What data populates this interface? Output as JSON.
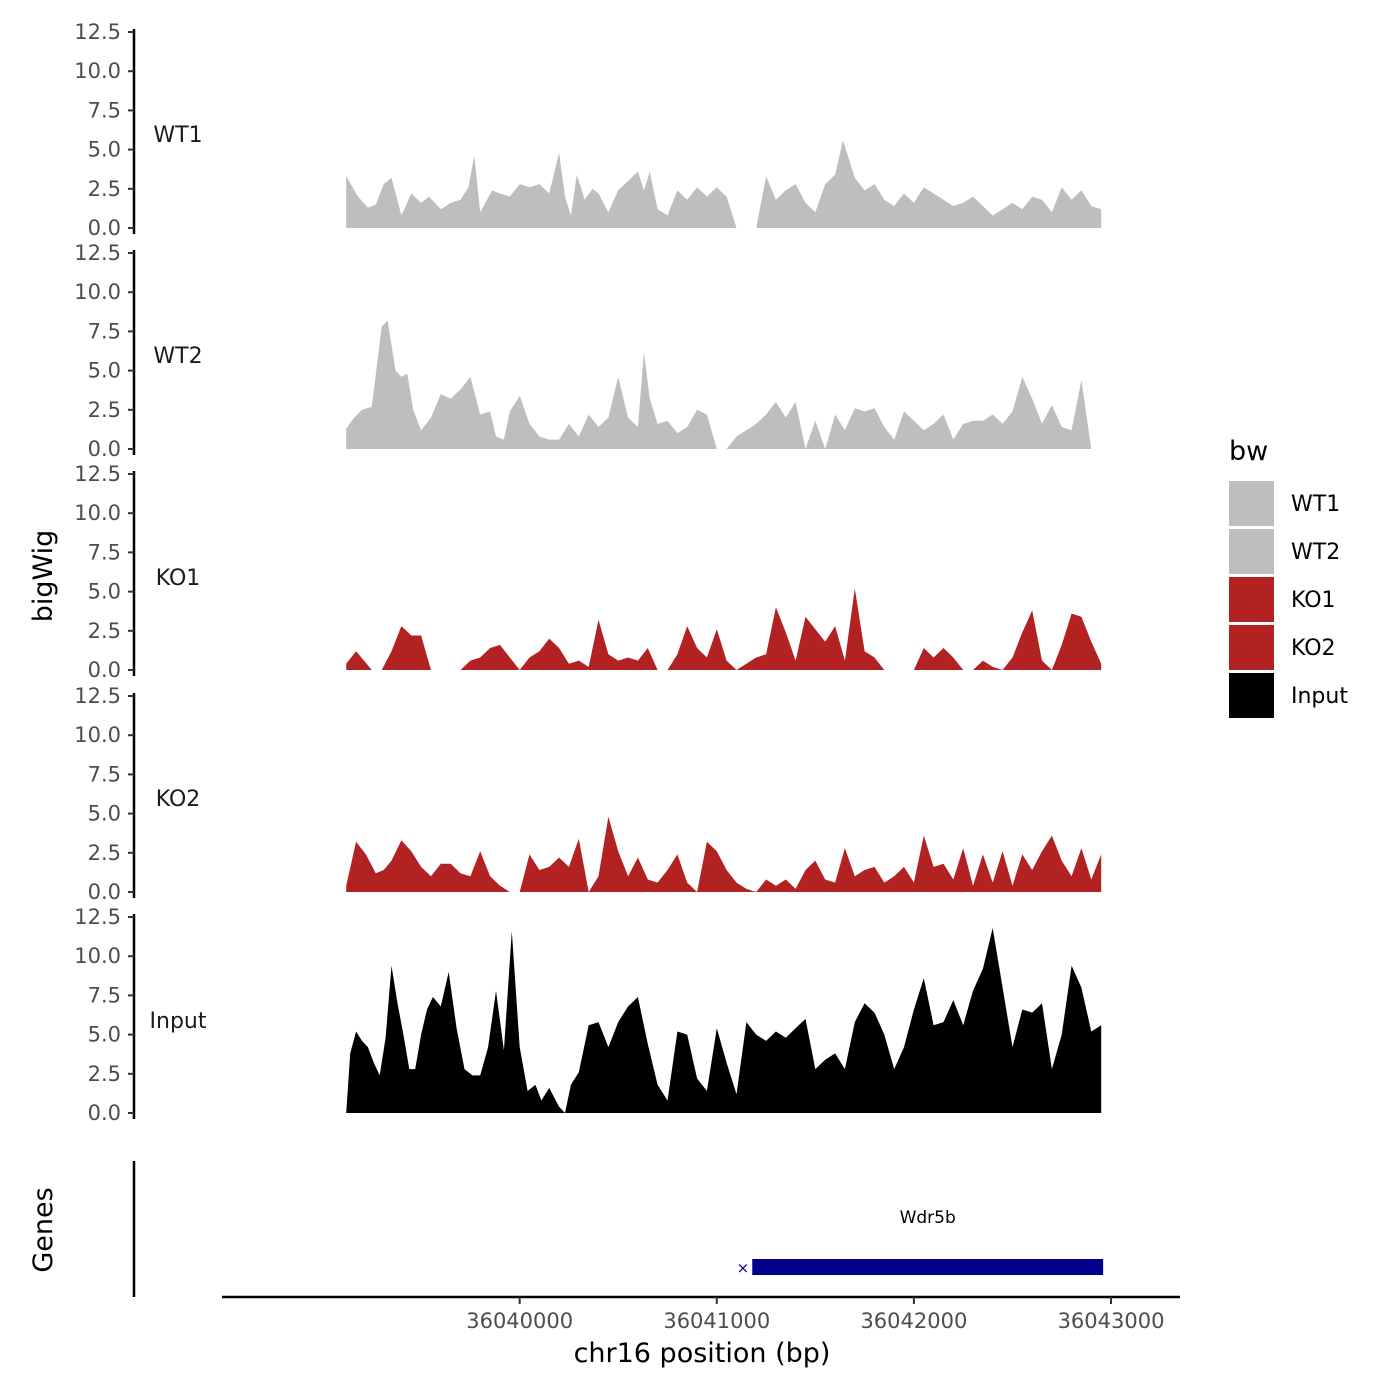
{
  "chart_data": {
    "type": "area",
    "xlabel": "chr16 position (bp)",
    "ylabel": "bigWig",
    "genes_ylabel": "Genes",
    "xlim": [
      36038500,
      36043350
    ],
    "x_ticks": [
      {
        "value": 36040000,
        "label": "36040000"
      },
      {
        "value": 36041000,
        "label": "36041000"
      },
      {
        "value": 36042000,
        "label": "36042000"
      },
      {
        "value": 36043000,
        "label": "36043000"
      }
    ],
    "ylim": [
      0,
      12.5
    ],
    "y_ticks": [
      {
        "value": 0,
        "label": "0.0"
      },
      {
        "value": 2.5,
        "label": "2.5"
      },
      {
        "value": 5,
        "label": "5.0"
      },
      {
        "value": 7.5,
        "label": "7.5"
      },
      {
        "value": 10,
        "label": "10.0"
      },
      {
        "value": 12.5,
        "label": "12.5"
      }
    ],
    "legend": {
      "title": "bw",
      "position": "right",
      "entries": [
        {
          "label": "WT1",
          "color": "#bebebe"
        },
        {
          "label": "WT2",
          "color": "#bebebe"
        },
        {
          "label": "KO1",
          "color": "#b22222"
        },
        {
          "label": "KO2",
          "color": "#b22222"
        },
        {
          "label": "Input",
          "color": "#000000"
        }
      ]
    },
    "series": [
      {
        "name": "WT1",
        "color": "#bebebe",
        "x": [
          36039120,
          36039180,
          36039230,
          36039270,
          36039310,
          36039350,
          36039400,
          36039450,
          36039500,
          36039540,
          36039600,
          36039650,
          36039700,
          36039740,
          36039770,
          36039800,
          36039860,
          36039900,
          36039950,
          36040000,
          36040050,
          36040100,
          36040150,
          36040200,
          36040230,
          36040260,
          36040290,
          36040330,
          36040370,
          36040400,
          36040450,
          36040500,
          36040550,
          36040600,
          36040630,
          36040660,
          36040700,
          36040750,
          36040800,
          36040850,
          36040900,
          36040950,
          36041000,
          36041050,
          36041100,
          36041200,
          36041250,
          36041300,
          36041350,
          36041400,
          36041450,
          36041500,
          36041550,
          36041600,
          36041640,
          36041700,
          36041750,
          36041800,
          36041850,
          36041900,
          36041950,
          36042000,
          36042050,
          36042100,
          36042150,
          36042200,
          36042250,
          36042300,
          36042350,
          36042400,
          36042450,
          36042500,
          36042550,
          36042600,
          36042650,
          36042700,
          36042750,
          36042800,
          36042850,
          36042900,
          36042950
        ],
        "y": [
          3.3,
          2.0,
          1.3,
          1.5,
          2.8,
          3.2,
          0.8,
          2.2,
          1.6,
          2.0,
          1.2,
          1.6,
          1.8,
          2.6,
          4.6,
          1.0,
          2.4,
          2.2,
          2.0,
          2.8,
          2.6,
          2.8,
          2.2,
          4.8,
          2.0,
          0.8,
          3.4,
          1.8,
          2.5,
          2.2,
          1.0,
          2.4,
          3.0,
          3.6,
          2.4,
          3.6,
          1.2,
          0.8,
          2.4,
          1.8,
          2.6,
          2.0,
          2.6,
          2.0,
          0,
          0,
          3.3,
          1.8,
          2.4,
          2.8,
          1.6,
          1.0,
          2.8,
          3.4,
          5.6,
          3.2,
          2.4,
          2.8,
          1.8,
          1.4,
          2.2,
          1.6,
          2.6,
          2.2,
          1.8,
          1.4,
          1.6,
          2.0,
          1.4,
          0.8,
          1.2,
          1.6,
          1.2,
          2.0,
          1.8,
          1.0,
          2.6,
          1.8,
          2.4,
          1.4,
          1.2
        ]
      },
      {
        "name": "WT2",
        "color": "#bebebe",
        "x": [
          36039120,
          36039160,
          36039200,
          36039250,
          36039300,
          36039330,
          36039370,
          36039400,
          36039430,
          36039460,
          36039500,
          36039550,
          36039600,
          36039650,
          36039700,
          36039750,
          36039800,
          36039850,
          36039880,
          36039920,
          36039950,
          36040000,
          36040050,
          36040100,
          36040150,
          36040200,
          36040250,
          36040300,
          36040350,
          36040400,
          36040450,
          36040500,
          36040550,
          36040600,
          36040630,
          36040660,
          36040700,
          36040750,
          36040800,
          36040850,
          36040900,
          36040950,
          36041000,
          36041050,
          36041100,
          36041200,
          36041250,
          36041300,
          36041350,
          36041400,
          36041450,
          36041500,
          36041550,
          36041600,
          36041650,
          36041700,
          36041750,
          36041800,
          36041850,
          36041900,
          36041950,
          36042000,
          36042050,
          36042100,
          36042150,
          36042200,
          36042250,
          36042300,
          36042350,
          36042400,
          36042450,
          36042500,
          36042550,
          36042600,
          36042650,
          36042700,
          36042750,
          36042800,
          36042850,
          36042900,
          36042950
        ],
        "y": [
          1.3,
          2.0,
          2.5,
          2.7,
          7.8,
          8.2,
          5.0,
          4.6,
          4.8,
          2.5,
          1.2,
          2.0,
          3.5,
          3.2,
          3.8,
          4.6,
          2.2,
          2.4,
          0.8,
          0.6,
          2.4,
          3.4,
          1.6,
          0.8,
          0.6,
          0.6,
          1.6,
          0.8,
          2.2,
          1.4,
          2.0,
          4.6,
          2.0,
          1.4,
          6.2,
          3.2,
          1.6,
          1.8,
          1.0,
          1.4,
          2.5,
          2.2,
          0,
          0,
          0.8,
          1.6,
          2.2,
          3.0,
          2.0,
          3.0,
          0,
          1.8,
          0,
          2.2,
          1.2,
          2.6,
          2.4,
          2.6,
          1.4,
          0.6,
          2.4,
          1.8,
          1.2,
          1.6,
          2.2,
          0.6,
          1.6,
          1.8,
          1.8,
          2.2,
          1.6,
          2.4,
          4.6,
          3.2,
          1.6,
          2.8,
          1.4,
          1.2,
          4.4,
          0,
          0
        ]
      },
      {
        "name": "KO1",
        "color": "#b22222",
        "x": [
          36039120,
          36039170,
          36039210,
          36039250,
          36039300,
          36039350,
          36039400,
          36039450,
          36039500,
          36039550,
          36039600,
          36039650,
          36039700,
          36039750,
          36039800,
          36039850,
          36039900,
          36039950,
          36040000,
          36040050,
          36040100,
          36040150,
          36040200,
          36040250,
          36040300,
          36040350,
          36040400,
          36040450,
          36040500,
          36040550,
          36040600,
          36040650,
          36040700,
          36040750,
          36040800,
          36040850,
          36040900,
          36040950,
          36041000,
          36041050,
          36041100,
          36041200,
          36041250,
          36041300,
          36041350,
          36041400,
          36041450,
          36041500,
          36041550,
          36041600,
          36041650,
          36041700,
          36041750,
          36041800,
          36041850,
          36041900,
          36041950,
          36042000,
          36042050,
          36042100,
          36042150,
          36042200,
          36042250,
          36042300,
          36042350,
          36042400,
          36042450,
          36042500,
          36042550,
          36042600,
          36042650,
          36042700,
          36042750,
          36042800,
          36042850,
          36042900,
          36042950
        ],
        "y": [
          0.4,
          1.2,
          0.6,
          0,
          0,
          1.2,
          2.8,
          2.2,
          2.2,
          0,
          0,
          0,
          0,
          0.6,
          0.8,
          1.4,
          1.6,
          0.8,
          0,
          0.8,
          1.2,
          2.0,
          1.4,
          0.4,
          0.6,
          0.2,
          3.2,
          1.0,
          0.6,
          0.8,
          0.6,
          1.4,
          0,
          0,
          1.0,
          2.8,
          1.4,
          0.8,
          2.6,
          0.6,
          0,
          0.8,
          1.0,
          4.0,
          2.4,
          0.6,
          3.4,
          2.6,
          1.8,
          2.8,
          0.6,
          5.2,
          1.2,
          0.8,
          0,
          0,
          0,
          0,
          1.4,
          0.8,
          1.4,
          0.8,
          0,
          0,
          0.6,
          0.2,
          0,
          0.8,
          2.4,
          3.8,
          0.6,
          0,
          1.6,
          3.6,
          3.4,
          1.8,
          0.4
        ]
      },
      {
        "name": "KO2",
        "color": "#b22222",
        "x": [
          36039120,
          36039170,
          36039220,
          36039270,
          36039310,
          36039350,
          36039400,
          36039450,
          36039500,
          36039550,
          36039600,
          36039650,
          36039700,
          36039750,
          36039800,
          36039850,
          36039900,
          36039950,
          36040000,
          36040050,
          36040100,
          36040150,
          36040200,
          36040250,
          36040300,
          36040350,
          36040400,
          36040450,
          36040500,
          36040550,
          36040600,
          36040650,
          36040700,
          36040750,
          36040800,
          36040850,
          36040900,
          36040950,
          36041000,
          36041050,
          36041100,
          36041150,
          36041200,
          36041250,
          36041300,
          36041350,
          36041400,
          36041450,
          36041500,
          36041550,
          36041600,
          36041650,
          36041700,
          36041750,
          36041800,
          36041850,
          36041900,
          36041950,
          36042000,
          36042050,
          36042100,
          36042150,
          36042200,
          36042250,
          36042300,
          36042350,
          36042400,
          36042450,
          36042500,
          36042550,
          36042600,
          36042650,
          36042700,
          36042750,
          36042800,
          36042850,
          36042900,
          36042950
        ],
        "y": [
          0.4,
          3.2,
          2.4,
          1.2,
          1.4,
          2.0,
          3.3,
          2.6,
          1.6,
          1.0,
          1.8,
          1.8,
          1.2,
          1.0,
          2.6,
          1.0,
          0.4,
          0,
          0,
          2.4,
          1.4,
          1.6,
          2.2,
          1.6,
          3.4,
          0,
          1.0,
          4.8,
          2.6,
          1.0,
          2.2,
          0.8,
          0.6,
          1.4,
          2.4,
          0.6,
          0,
          3.2,
          2.6,
          1.4,
          0.6,
          0.2,
          0,
          0.8,
          0.4,
          0.8,
          0.2,
          1.4,
          2.0,
          0.8,
          0.6,
          2.8,
          1.0,
          1.4,
          1.6,
          0.6,
          1.0,
          1.6,
          0.6,
          3.6,
          1.6,
          1.8,
          0.8,
          2.8,
          0.4,
          2.4,
          0.6,
          2.6,
          0.4,
          2.4,
          1.4,
          2.6,
          3.6,
          2.0,
          1.0,
          2.8,
          0.8,
          2.4
        ]
      },
      {
        "name": "Input",
        "color": "#000000",
        "x": [
          36039120,
          36039140,
          36039170,
          36039200,
          36039230,
          36039260,
          36039290,
          36039320,
          36039350,
          36039380,
          36039410,
          36039440,
          36039470,
          36039500,
          36039530,
          36039560,
          36039600,
          36039640,
          36039680,
          36039720,
          36039760,
          36039800,
          36039840,
          36039880,
          36039920,
          36039960,
          36040000,
          36040040,
          36040080,
          36040110,
          36040150,
          36040200,
          36040230,
          36040260,
          36040300,
          36040350,
          36040400,
          36040450,
          36040500,
          36040550,
          36040600,
          36040650,
          36040700,
          36040750,
          36040800,
          36040850,
          36040900,
          36040950,
          36041000,
          36041050,
          36041100,
          36041150,
          36041200,
          36041250,
          36041300,
          36041350,
          36041400,
          36041450,
          36041500,
          36041550,
          36041600,
          36041650,
          36041700,
          36041750,
          36041800,
          36041850,
          36041900,
          36041950,
          36042000,
          36042050,
          36042100,
          36042150,
          36042200,
          36042250,
          36042300,
          36042350,
          36042400,
          36042450,
          36042500,
          36042550,
          36042600,
          36042650,
          36042700,
          36042750,
          36042800,
          36042850,
          36042900,
          36042950
        ],
        "y": [
          0,
          3.8,
          5.2,
          4.6,
          4.2,
          3.2,
          2.4,
          4.8,
          9.4,
          7.0,
          5.0,
          2.8,
          2.8,
          5.0,
          6.6,
          7.4,
          6.8,
          9.0,
          5.4,
          2.8,
          2.4,
          2.4,
          4.2,
          7.8,
          4.0,
          11.6,
          4.2,
          1.4,
          1.8,
          0.8,
          1.6,
          0.4,
          0,
          1.8,
          2.6,
          5.6,
          5.8,
          4.2,
          5.8,
          6.8,
          7.4,
          4.4,
          1.8,
          0.8,
          5.2,
          5.0,
          2.2,
          1.4,
          5.4,
          3.2,
          1.2,
          5.8,
          5.0,
          4.6,
          5.2,
          4.8,
          5.4,
          6.0,
          2.8,
          3.4,
          3.8,
          2.8,
          5.8,
          7.0,
          6.4,
          5.0,
          2.8,
          4.2,
          6.6,
          8.6,
          5.6,
          5.8,
          7.2,
          5.6,
          7.8,
          9.2,
          11.8,
          8.0,
          4.2,
          6.6,
          6.4,
          7.0,
          2.8,
          5.0,
          9.4,
          8.0,
          5.2,
          5.6
        ]
      }
    ],
    "genes": [
      {
        "name": "Wdr5b",
        "start": 36041180,
        "end": 36042960,
        "strand": "+",
        "color": "#00008b"
      }
    ]
  }
}
